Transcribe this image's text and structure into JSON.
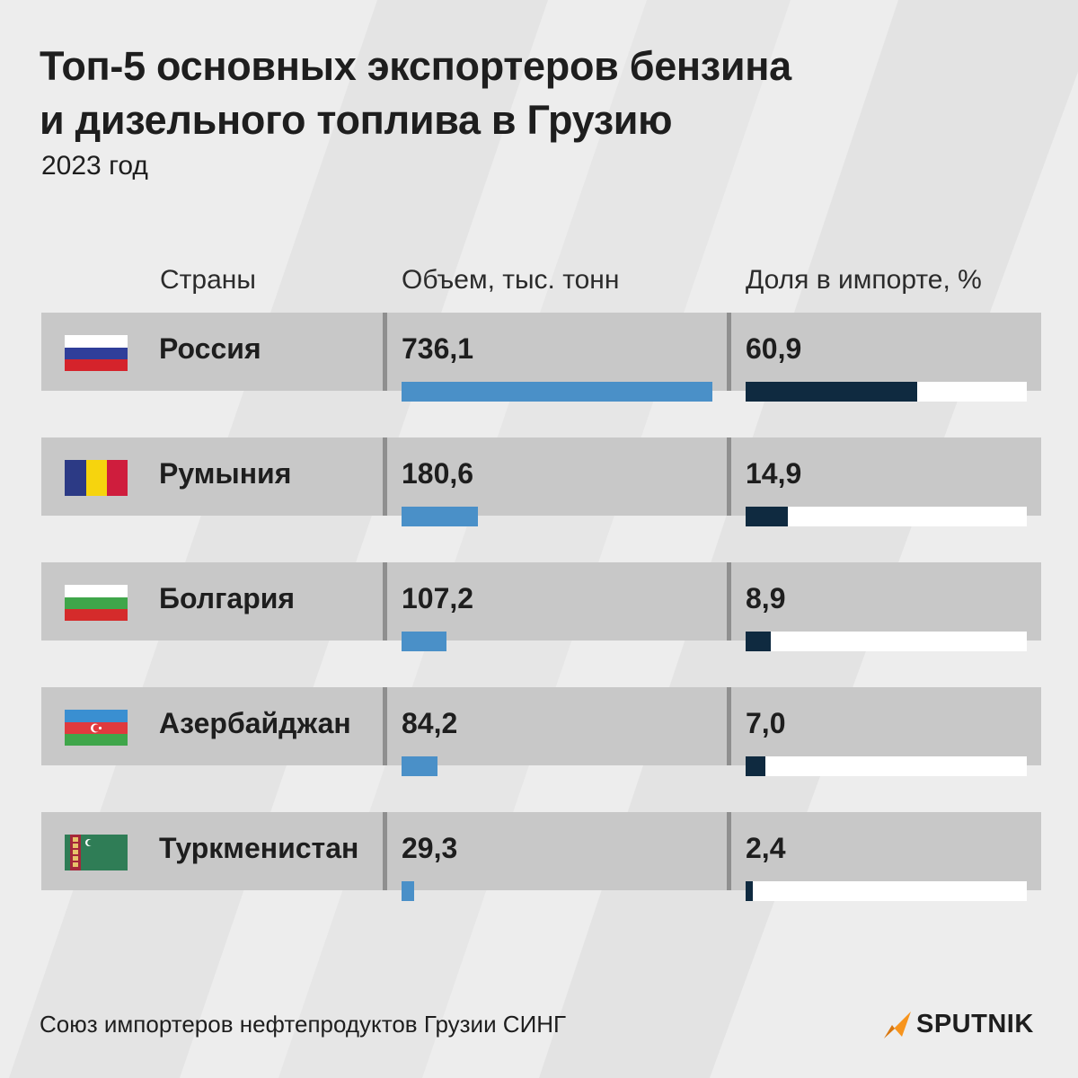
{
  "title_line1": "Топ-5 основных экспортеров бензина",
  "title_line2": "и дизельного топлива в Грузию",
  "subtitle": "2023 год",
  "headers": {
    "country": "Страны",
    "volume": "Объем, тыс. тонн",
    "share": "Доля в импорте, %"
  },
  "colors": {
    "volume_bar": "#4a90c8",
    "share_fill": "#0f2a40",
    "share_track": "#ffffff",
    "row_bg": "#c8c8c8"
  },
  "chart_data": {
    "type": "table",
    "title": "Топ-5 основных экспортеров бензина и дизельного топлива в Грузию",
    "subtitle": "2023 год",
    "categories": [
      "Россия",
      "Румыния",
      "Болгария",
      "Азербайджан",
      "Туркменистан"
    ],
    "series": [
      {
        "name": "Объем, тыс. тонн",
        "values": [
          736.1,
          180.6,
          107.2,
          84.2,
          29.3
        ],
        "labels": [
          "736,1",
          "180,6",
          "107,2",
          "84,2",
          "29,3"
        ],
        "max": 736.1
      },
      {
        "name": "Доля в импорте, %",
        "values": [
          60.9,
          14.9,
          8.9,
          7.0,
          2.4
        ],
        "labels": [
          "60,9",
          "14,9",
          "8,9",
          "7,0",
          "2,4"
        ],
        "max": 100
      }
    ],
    "flags": [
      "russia",
      "romania",
      "bulgaria",
      "azerbaijan",
      "turkmenistan"
    ]
  },
  "source": "Союз импортеров нефтепродуктов Грузии СИНГ",
  "logo": {
    "text": "SPUTNIK",
    "icon": "sputnik-arrow-icon",
    "icon_color": "#f7941d"
  }
}
